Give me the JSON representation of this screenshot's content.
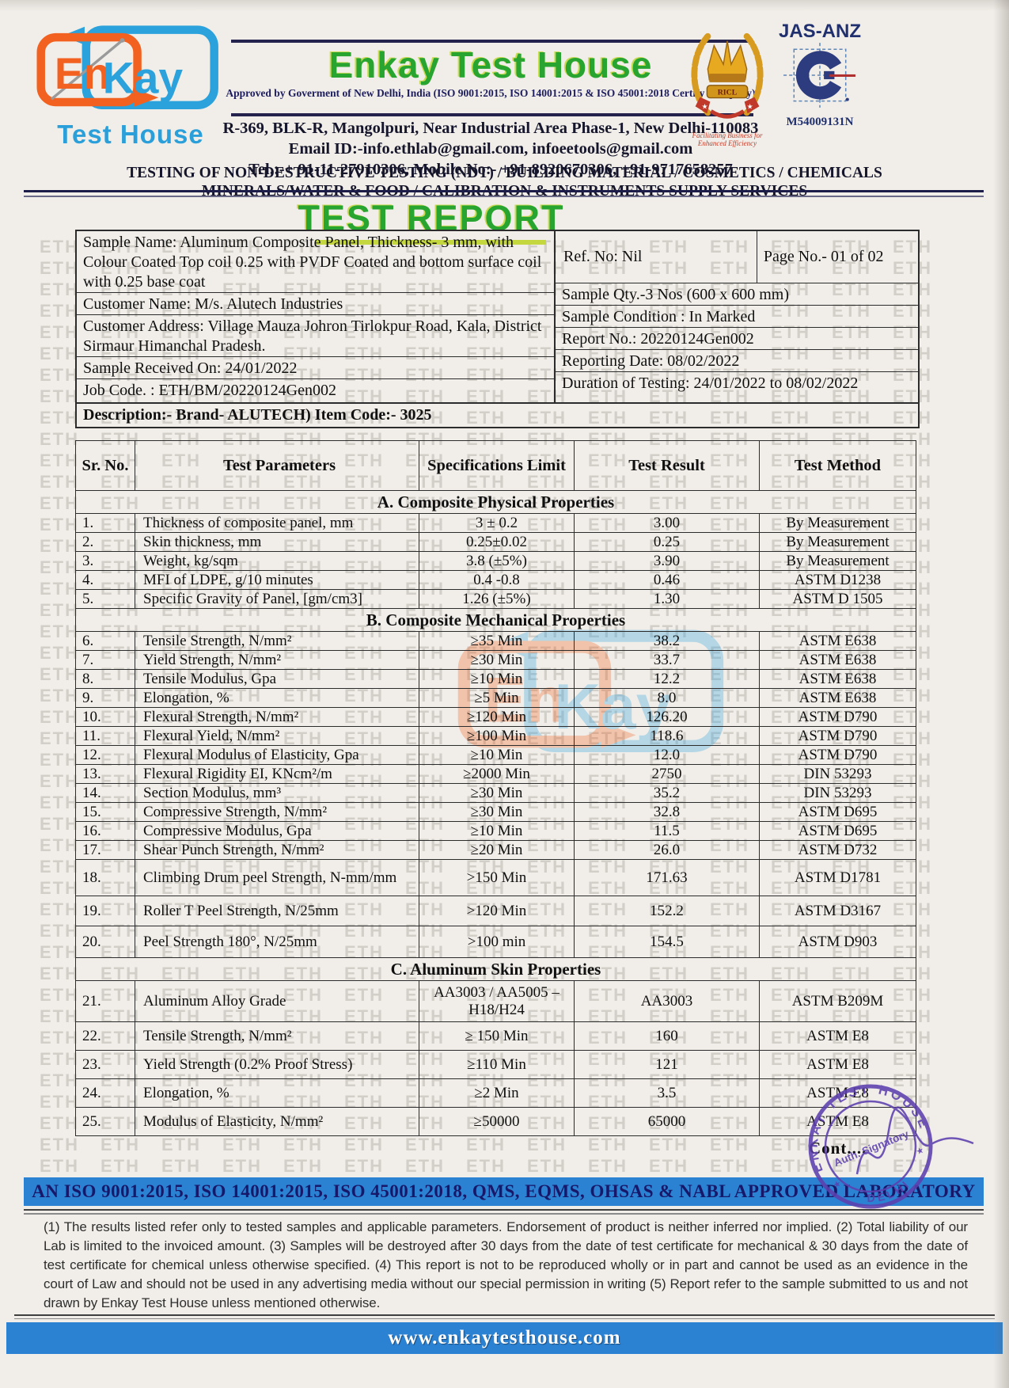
{
  "watermark": {
    "text": "ETH"
  },
  "logo": {
    "part1": "En",
    "part2": "Kay",
    "subtitle": "Test House"
  },
  "header": {
    "company_name": "Enkay Test House",
    "approval_line": "Approved by Goverment of New Delhi, India (ISO 9001:2015, ISO 14001:2015 & ISO 45001:2018 Certify Company)",
    "address_line": "R-369, BLK-R, Mangolpuri, Near Industrial Area Phase-1, New Delhi-110083",
    "email_line": "Email ID:-info.ethlab@gmail.com, infoeetools@gmail.com",
    "tel_line": "Tel.:-+ 91-11-27910306, Mobile No:- +91-8920670306, +91-9717658257",
    "services_line1": "TESTING OF NON-DESTRUCTIVE TESTING (NDT) / BUILDING MATERIAL / COSMETICS / CHEMICALS",
    "services_line2": "MINERALS/WATER & FOOD /  CALIBRATION & INSTRUMENTS SUPPLY SERVICES",
    "emblem_label": "RICL",
    "emblem_tagline": "Facilitating Business for Enhanced Efficiency",
    "jas_anz_label": "JAS-ANZ",
    "jas_anz_number": "M54009131N"
  },
  "report": {
    "title": "TEST REPORT"
  },
  "info": {
    "sample_name": "Sample Name: Aluminum Composite Panel, Thickness- 3 mm, with Colour Coated Top coil 0.25 with PVDF Coated and bottom surface coil with 0.25 base coat",
    "ref_no": "Ref. No: Nil",
    "page_no": "Page No.- 01 of 02",
    "customer_name": "Customer Name: M/s. Alutech Industries",
    "sample_qty": "Sample Qty.-3 Nos (600 x 600 mm)",
    "customer_address": "Customer Address: Village Mauza Johron Tirlokpur Road, Kala, District Sirmaur Himanchal Pradesh.",
    "sample_condition": "Sample Condition : In Marked",
    "report_no": "Report No.: 20220124Gen002",
    "sample_received": "Sample Received On: 24/01/2022",
    "reporting_date": "Reporting Date: 08/02/2022",
    "job_code": "Job Code. : ETH/BM/20220124Gen002",
    "duration": "Duration of Testing: 24/01/2022 to 08/02/2022",
    "description": "Description:- Brand- ALUTECH) Item Code:- 3025"
  },
  "results_table": {
    "headers": {
      "sr": "Sr. No.",
      "parameter": "Test Parameters",
      "spec": "Specifications Limit",
      "result": "Test Result",
      "method": "Test Method"
    },
    "sections": [
      {
        "title": "A. Composite Physical Properties",
        "rows": [
          {
            "sr": "1.",
            "parameter": "Thickness of composite panel, mm",
            "spec": "3 ± 0.2",
            "result": "3.00",
            "method": "By Measurement"
          },
          {
            "sr": "2.",
            "parameter": "Skin thickness, mm",
            "spec": "0.25±0.02",
            "result": "0.25",
            "method": "By Measurement"
          },
          {
            "sr": "3.",
            "parameter": "Weight, kg/sqm",
            "spec": "3.8 (±5%)",
            "result": "3.90",
            "method": "By Measurement"
          },
          {
            "sr": "4.",
            "parameter": "MFI of LDPE, g/10 minutes",
            "spec": "0.4 -0.8",
            "result": "0.46",
            "method": "ASTM D1238"
          },
          {
            "sr": "5.",
            "parameter": "Specific Gravity of Panel, [gm/cm3]",
            "spec": "1.26 (±5%)",
            "result": "1.30",
            "method": "ASTM D 1505"
          }
        ]
      },
      {
        "title": "B. Composite Mechanical Properties",
        "rows": [
          {
            "sr": "6.",
            "parameter": "Tensile Strength, N/mm²",
            "spec": "≥35 Min",
            "result": "38.2",
            "method": "ASTM E638"
          },
          {
            "sr": "7.",
            "parameter": "Yield Strength, N/mm²",
            "spec": "≥30 Min",
            "result": "33.7",
            "method": "ASTM E638"
          },
          {
            "sr": "8.",
            "parameter": "Tensile Modulus, Gpa",
            "spec": "≥10 Min",
            "result": "12.2",
            "method": "ASTM E638"
          },
          {
            "sr": "9.",
            "parameter": "Elongation, %",
            "spec": "≥5 Min",
            "result": "8.0",
            "method": "ASTM E638"
          },
          {
            "sr": "10.",
            "parameter": "Flexural Strength, N/mm²",
            "spec": "≥120 Min",
            "result": "126.20",
            "method": "ASTM D790"
          },
          {
            "sr": "11.",
            "parameter": "Flexural Yield, N/mm²",
            "spec": "≥100 Min",
            "result": "118.6",
            "method": "ASTM D790"
          },
          {
            "sr": "12.",
            "parameter": "Flexural Modulus of Elasticity, Gpa",
            "spec": "≥10 Min",
            "result": "12.0",
            "method": "ASTM D790"
          },
          {
            "sr": "13.",
            "parameter": "Flexural Rigidity EI, KNcm²/m",
            "spec": "≥2000 Min",
            "result": "2750",
            "method": "DIN 53293"
          },
          {
            "sr": "14.",
            "parameter": "Section Modulus, mm³",
            "spec": "≥30 Min",
            "result": "35.2",
            "method": "DIN 53293"
          },
          {
            "sr": "15.",
            "parameter": "Compressive Strength, N/mm²",
            "spec": "≥30 Min",
            "result": "32.8",
            "method": "ASTM D695"
          },
          {
            "sr": "16.",
            "parameter": "Compressive Modulus, Gpa",
            "spec": "≥10 Min",
            "result": "11.5",
            "method": "ASTM D695"
          },
          {
            "sr": "17.",
            "parameter": "Shear Punch Strength, N/mm²",
            "spec": "≥20 Min",
            "result": "26.0",
            "method": "ASTM D732"
          },
          {
            "sr": "18.",
            "parameter": "Climbing Drum peel Strength, N-mm/mm",
            "spec": ">150 Min",
            "result": "171.63",
            "method": "ASTM D1781"
          },
          {
            "sr": "19.",
            "parameter": "Roller T Peel Strength, N/25mm",
            "spec": ">120 Min",
            "result": "152.2",
            "method": "ASTM D3167"
          },
          {
            "sr": "20.",
            "parameter": "Peel Strength 180°, N/25mm",
            "spec": ">100 min",
            "result": "154.5",
            "method": "ASTM D903"
          }
        ]
      },
      {
        "title": "C. Aluminum Skin Properties",
        "rows": [
          {
            "sr": "21.",
            "parameter": "Aluminum Alloy Grade",
            "spec": "AA3003 / AA5005 – H18/H24",
            "result": "AA3003",
            "method": "ASTM B209M"
          },
          {
            "sr": "22.",
            "parameter": "Tensile Strength, N/mm²",
            "spec": "≥ 150 Min",
            "result": "160",
            "method": "ASTM E8"
          },
          {
            "sr": "23.",
            "parameter": "Yield Strength (0.2% Proof Stress)",
            "spec": "≥110 Min",
            "result": "121",
            "method": "ASTM E8"
          },
          {
            "sr": "24.",
            "parameter": "Elongation, %",
            "spec": "≥2 Min",
            "result": "3.5",
            "method": "ASTM E8"
          },
          {
            "sr": "25.",
            "parameter": "Modulus of Elasticity, N/mm²",
            "spec": "≥50000",
            "result": "65000",
            "method": "ASTM E8"
          }
        ]
      }
    ]
  },
  "stamp": {
    "cont_label": "Cont....",
    "ring_text": "ENKAY TEST HOUSE",
    "center_text": "Auth. Signatory",
    "bottom_text": "DELHI",
    "star": "★"
  },
  "footer": {
    "iso_line": "AN ISO 9001:2015, ISO 14001:2015, ISO 45001:2018, QMS, EQMS, OHSAS & NABL  APPROVED LABORATORY",
    "disclaimer": "(1) The results listed refer only to tested samples  and  applicable  parameters.  Endorsement  of  product is  neither  inferred  nor implied. (2) Total liability of our Lab is limited to the invoiced amount. (3) Samples will be destroyed after  30  days  from  the date of test certificate for mechanical & 30 days from the date of test certificate for chemical unless otherwise specified. (4) This report is not to be reproduced wholly or in part and cannot be used as an evidence in the court of Law and should not be used in any advertising media without our special permission in writing (5) Report refer to  the sample  submitted  to us and not drawn by Enkay Test House unless mentioned otherwise.",
    "website": "www.enkaytesthouse.com"
  },
  "colors": {
    "brand_green": "#28a431",
    "brand_orange": "#f2611f",
    "brand_blue": "#2a9fd9",
    "navy": "#1d1d4a",
    "bar_blue": "#2c82d2",
    "stamp_purple": "#5d3fae"
  }
}
